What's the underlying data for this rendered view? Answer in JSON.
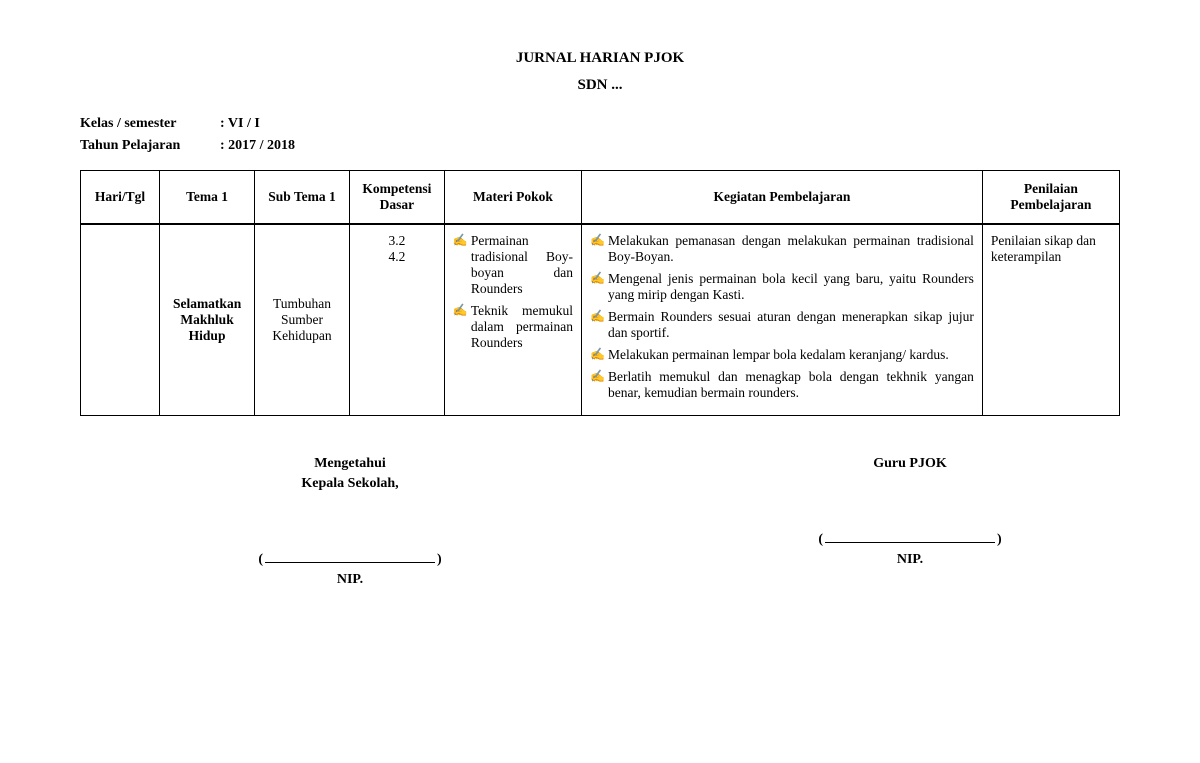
{
  "header": {
    "title": "JURNAL HARIAN PJOK",
    "school": "SDN ..."
  },
  "meta": {
    "kelas_label": "Kelas / semester",
    "kelas_value": "VI / I",
    "tahun_label": "Tahun Pelajaran",
    "tahun_value": "2017 / 2018"
  },
  "table": {
    "headers": {
      "hari": "Hari/Tgl",
      "tema": "Tema 1",
      "sub": "Sub Tema 1",
      "komp": "Kompetensi Dasar",
      "materi": "Materi Pokok",
      "kegiatan": "Kegiatan Pembelajaran",
      "penilaian": "Penilaian Pembelajaran"
    },
    "row": {
      "hari": "",
      "tema": "Selamatkan Makhluk Hidup",
      "sub": "Tumbuhan Sumber Kehidupan",
      "komp1": "3.2",
      "komp2": "4.2",
      "materi": [
        "Permainan tradisional Boy-boyan dan Rounders",
        "Teknik memukul dalam permainan Rounders"
      ],
      "kegiatan": [
        "Melakukan pemanasan dengan melakukan permainan tradisional Boy-Boyan.",
        "Mengenal jenis permainan bola kecil yang baru, yaitu Rounders yang mirip dengan Kasti.",
        "Bermain Rounders sesuai aturan dengan menerapkan sikap jujur dan sportif.",
        "Melakukan permainan lempar bola kedalam keranjang/ kardus.",
        "Berlatih memukul dan menagkap bola dengan tekhnik yangan benar, kemudian bermain rounders."
      ],
      "penilaian": "Penilaian sikap dan keterampilan"
    }
  },
  "signatures": {
    "left": {
      "line1": "Mengetahui",
      "line2": "Kepala Sekolah,",
      "nip": "NIP."
    },
    "right": {
      "line1": "Guru PJOK",
      "line2": "",
      "nip": "NIP."
    }
  }
}
